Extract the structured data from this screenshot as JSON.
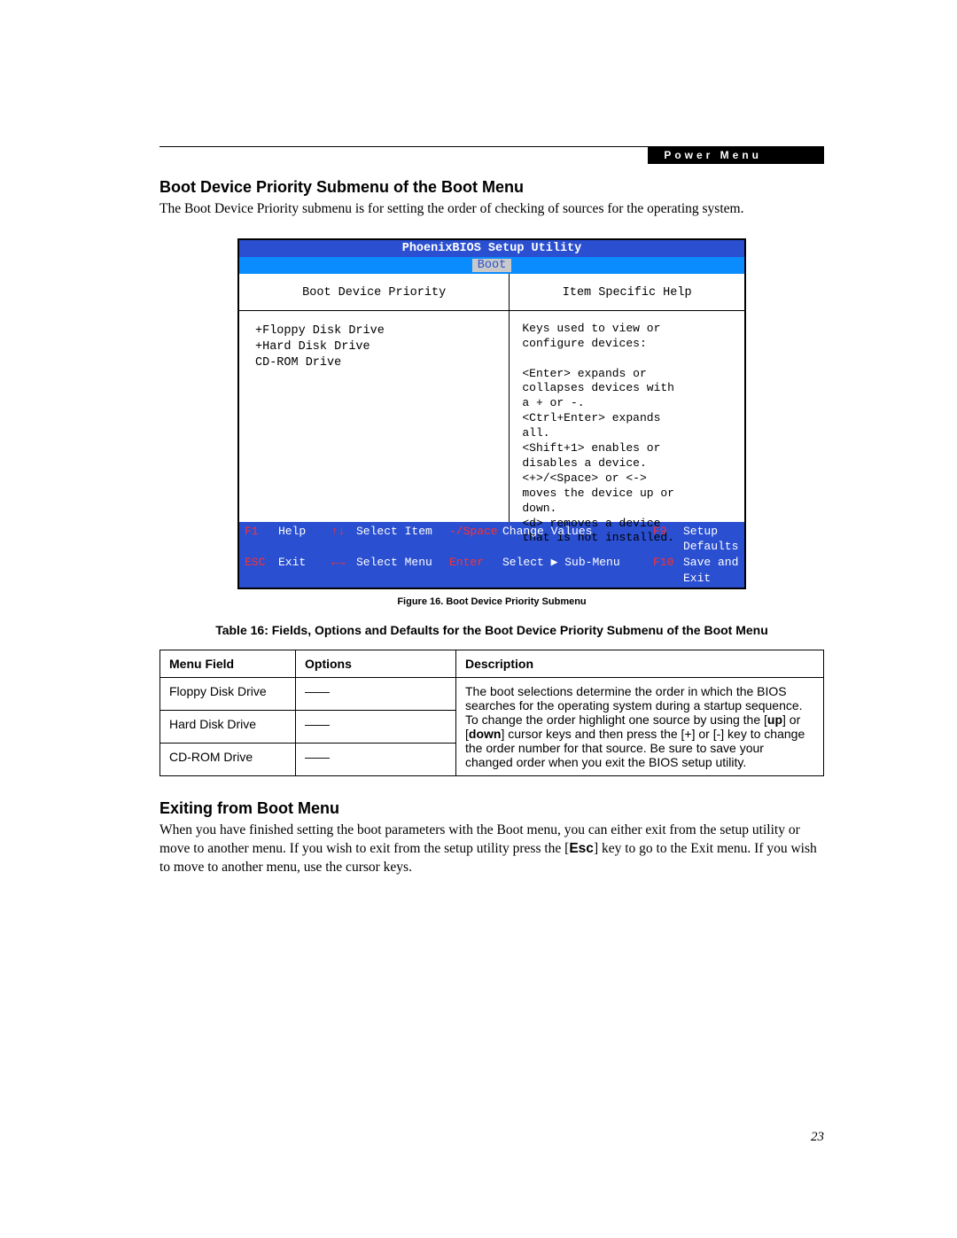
{
  "header": {
    "tab_label": "Power Menu"
  },
  "section1": {
    "heading": "Boot Device Priority Submenu of the Boot Menu",
    "paragraph": "The Boot Device Priority submenu is for setting the order of checking of sources for the operating system."
  },
  "bios": {
    "title": "PhoenixBIOS Setup Utility",
    "menubar_active": "Boot",
    "left_header": "Boot Device Priority",
    "devices": [
      "+Floppy Disk Drive",
      "+Hard Disk Drive",
      " CD-ROM Drive"
    ],
    "right_header": "Item Specific Help",
    "help_lines": [
      "Keys used to view or",
      "configure devices:",
      "",
      "<Enter> expands or",
      "collapses devices with",
      "a + or -.",
      "<Ctrl+Enter> expands",
      "all.",
      "<Shift+1> enables or",
      "disables a device.",
      "<+>/<Space> or <->",
      "moves the device up or",
      "down.",
      "<d> removes a device",
      "that is not installed."
    ],
    "footer": {
      "r1": {
        "k1": "F1",
        "v1": "Help",
        "k2": "↑↓",
        "v2": "Select Item",
        "k3": "-/Space",
        "v3": "Change Values",
        "k4": "F9",
        "v4": "Setup Defaults"
      },
      "r2": {
        "k1": "ESC",
        "v1": "Exit",
        "k2": "←→",
        "v2": "Select Menu",
        "k3": "Enter",
        "v3": "Select ▶ Sub-Menu",
        "k4": "F10",
        "v4": "Save and Exit"
      }
    },
    "colors": {
      "title_bg": "#2a4fd0",
      "menubar_bg": "#0a8cff",
      "active_bg": "#c9c9c9",
      "key_color": "#ff3030"
    }
  },
  "figure_caption": "Figure 16.  Boot Device Priority Submenu",
  "table_caption": "Table 16: Fields, Options and Defaults for the Boot Device Priority Submenu of the Boot Menu",
  "table": {
    "headers": {
      "c1": "Menu Field",
      "c2": "Options",
      "c3": "Description"
    },
    "rows": [
      {
        "field": "Floppy Disk Drive",
        "options": "——"
      },
      {
        "field": "Hard Disk Drive",
        "options": "——"
      },
      {
        "field": "CD-ROM Drive",
        "options": "——"
      }
    ],
    "description_pre": "The boot selections determine the order in which the BIOS searches for the operating system during a startup sequence. To change the order highlight one source by using the [",
    "description_mid1": "up",
    "description_mid2": "] or [",
    "description_mid3": "down",
    "description_post": "] cursor keys and then press the [+] or [-] key to change the order number for that source. Be sure to save your changed order when you exit the BIOS setup utility."
  },
  "section2": {
    "heading": "Exiting from Boot Menu",
    "para_pre": "When you have finished setting the boot parameters with the Boot menu, you can either exit from the setup utility or move to another menu. If you wish to exit from the setup utility press the [",
    "para_key": "Esc",
    "para_post": "] key to go to the Exit menu. If you wish to move to another menu, use the cursor keys."
  },
  "page_number": "23"
}
